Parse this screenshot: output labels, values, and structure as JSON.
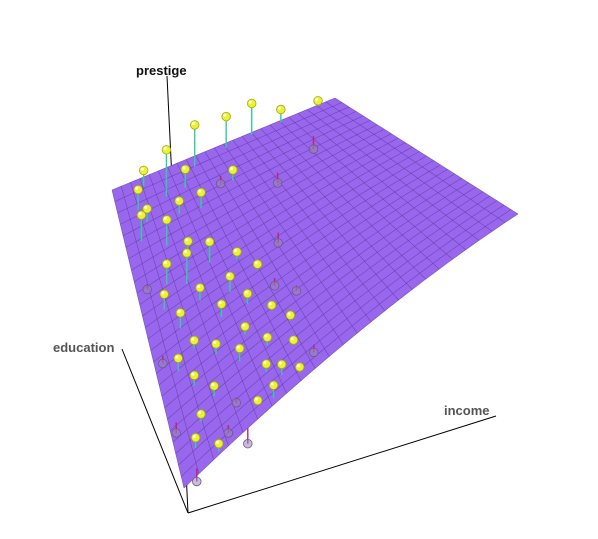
{
  "chart_data": {
    "type": "surface3d",
    "axes": {
      "x": {
        "label": "income"
      },
      "y": {
        "label": "prestige"
      },
      "z": {
        "label": "education"
      }
    },
    "surface": {
      "grid_rows": 26,
      "grid_cols": 24,
      "color": "#9966ee",
      "line_color": "#5a3a9a"
    },
    "points": {
      "color": "#eef22a",
      "residual_pos_color": "#2fd0a0",
      "residual_neg_color": "#c0207a",
      "values": [
        {
          "u": 0.2,
          "v": 0.9,
          "h": 0.18
        },
        {
          "u": 0.35,
          "v": 0.96,
          "h": 0.16
        },
        {
          "u": 0.5,
          "v": 0.98,
          "h": 0.12
        },
        {
          "u": 0.62,
          "v": 0.99,
          "h": 0.12
        },
        {
          "u": 0.75,
          "v": 0.99,
          "h": 0.05
        },
        {
          "u": 0.92,
          "v": 0.995,
          "h": 0.02
        },
        {
          "u": 0.13,
          "v": 0.97,
          "h": 0.06
        },
        {
          "u": 0.08,
          "v": 0.9,
          "h": 0.08
        },
        {
          "u": 0.06,
          "v": 0.8,
          "h": 0.1
        },
        {
          "u": 0.1,
          "v": 0.85,
          "h": 0.05
        },
        {
          "u": 0.22,
          "v": 0.82,
          "h": 0.05
        },
        {
          "u": 0.3,
          "v": 0.8,
          "h": 0.06
        },
        {
          "u": 0.45,
          "v": 0.84,
          "h": 0.04
        },
        {
          "u": 0.28,
          "v": 0.9,
          "h": 0.07
        },
        {
          "u": 0.42,
          "v": 0.88,
          "h": -0.03
        },
        {
          "u": 0.6,
          "v": 0.78,
          "h": -0.04
        },
        {
          "u": 0.8,
          "v": 0.86,
          "h": -0.05
        },
        {
          "u": 0.14,
          "v": 0.74,
          "h": 0.1
        },
        {
          "u": 0.2,
          "v": 0.68,
          "h": 0.04
        },
        {
          "u": 0.1,
          "v": 0.62,
          "h": 0.08
        },
        {
          "u": 0.07,
          "v": 0.55,
          "h": 0.06
        },
        {
          "u": 0.16,
          "v": 0.58,
          "h": 0.12
        },
        {
          "u": 0.25,
          "v": 0.6,
          "h": 0.08
        },
        {
          "u": 0.33,
          "v": 0.55,
          "h": 0.03
        },
        {
          "u": 0.18,
          "v": 0.5,
          "h": 0.05
        },
        {
          "u": 0.1,
          "v": 0.46,
          "h": 0.06
        },
        {
          "u": 0.27,
          "v": 0.46,
          "h": 0.06
        },
        {
          "u": 0.37,
          "v": 0.47,
          "h": 0.02
        },
        {
          "u": 0.22,
          "v": 0.4,
          "h": 0.05
        },
        {
          "u": 0.12,
          "v": 0.37,
          "h": 0.03
        },
        {
          "u": 0.06,
          "v": 0.34,
          "h": 0.05
        },
        {
          "u": 0.3,
          "v": 0.38,
          "h": 0.04
        },
        {
          "u": 0.4,
          "v": 0.4,
          "h": -0.03
        },
        {
          "u": 0.17,
          "v": 0.3,
          "h": 0.04
        },
        {
          "u": 0.09,
          "v": 0.26,
          "h": 0.04
        },
        {
          "u": 0.26,
          "v": 0.29,
          "h": 0.03
        },
        {
          "u": 0.35,
          "v": 0.3,
          "h": 0.02
        },
        {
          "u": 0.44,
          "v": 0.32,
          "h": -0.02
        },
        {
          "u": 0.22,
          "v": 0.22,
          "h": 0.05
        },
        {
          "u": 0.13,
          "v": 0.18,
          "h": 0.04
        },
        {
          "u": 0.3,
          "v": 0.2,
          "h": 0.03
        },
        {
          "u": 0.38,
          "v": 0.22,
          "h": 0.02
        },
        {
          "u": 0.08,
          "v": 0.14,
          "h": 0.03
        },
        {
          "u": 0.18,
          "v": 0.12,
          "h": -0.02
        },
        {
          "u": 0.27,
          "v": 0.12,
          "h": 0.03
        },
        {
          "u": 0.36,
          "v": 0.14,
          "h": 0.01
        },
        {
          "u": 0.05,
          "v": 0.08,
          "h": 0.04
        },
        {
          "u": 0.14,
          "v": 0.06,
          "h": -0.03
        },
        {
          "u": 0.22,
          "v": 0.04,
          "h": 0.02
        },
        {
          "u": 0.3,
          "v": 0.07,
          "h": 0.04
        },
        {
          "u": 0.4,
          "v": 0.08,
          "h": -0.03
        },
        {
          "u": 0.04,
          "v": 0.02,
          "h": -0.05
        },
        {
          "u": 0.1,
          "v": 0.01,
          "h": 0.03
        },
        {
          "u": 0.18,
          "v": 0.0,
          "h": -0.06
        },
        {
          "u": 0.26,
          "v": 0.02,
          "h": 0.05
        },
        {
          "u": 0.34,
          "v": 0.03,
          "h": 0.02
        },
        {
          "u": 0.02,
          "v": 0.2,
          "h": -0.04
        },
        {
          "u": 0.03,
          "v": 0.42,
          "h": -0.03
        },
        {
          "u": 0.04,
          "v": 0.66,
          "h": -0.02
        },
        {
          "u": 0.48,
          "v": 0.55,
          "h": -0.04
        }
      ]
    }
  }
}
